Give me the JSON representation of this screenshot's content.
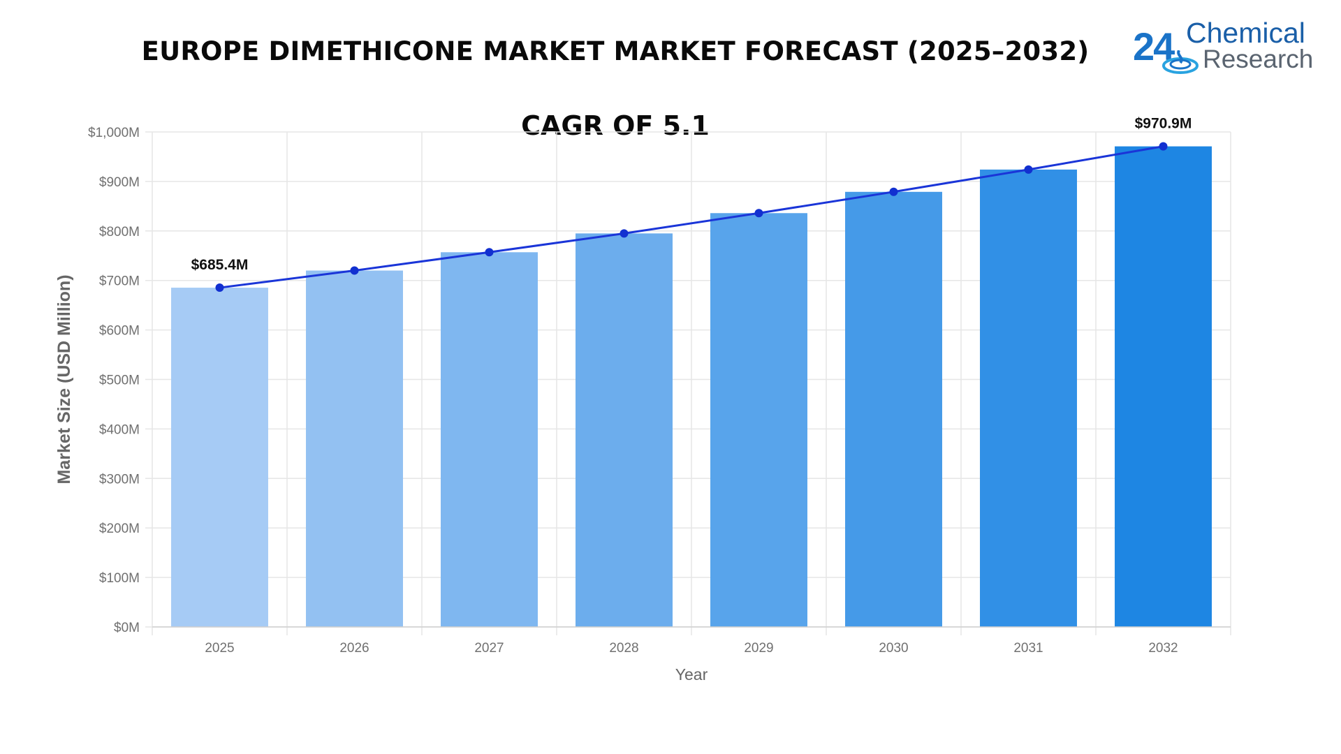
{
  "header": {
    "title": "EUROPE DIMETHICONE MARKET MARKET FORECAST (2025–2032)",
    "subtitle": "CAGR OF 5.1"
  },
  "brand": {
    "number": "24",
    "line1": "Chemical",
    "line2": "Research"
  },
  "chart_data": {
    "type": "bar",
    "title": "EUROPE DIMETHICONE MARKET MARKET FORECAST (2025–2032)",
    "subtitle": "CAGR OF 5.1",
    "xlabel": "Year",
    "ylabel": "Market Size (USD Million)",
    "categories": [
      "2025",
      "2026",
      "2027",
      "2028",
      "2029",
      "2030",
      "2031",
      "2032"
    ],
    "values": [
      685.4,
      720,
      757,
      795,
      836,
      879,
      924,
      970.9
    ],
    "overlay_line": true,
    "ylim": [
      0,
      1000
    ],
    "yticks": [
      0,
      100,
      200,
      300,
      400,
      500,
      600,
      700,
      800,
      900,
      1000
    ],
    "ytick_labels": [
      "$0M",
      "$100M",
      "$200M",
      "$300M",
      "$400M",
      "$500M",
      "$600M",
      "$700M",
      "$800M",
      "$900M",
      "$1,000M"
    ],
    "data_labels": [
      {
        "category": "2025",
        "text": "$685.4M"
      },
      {
        "category": "2032",
        "text": "$970.9M"
      }
    ],
    "grid": true,
    "colors": {
      "bar_start": "#a6cbf5",
      "bar_end": "#1e86e3",
      "line": "#1a35d8",
      "point": "#1230d0",
      "grid": "#e6e6e6"
    }
  }
}
